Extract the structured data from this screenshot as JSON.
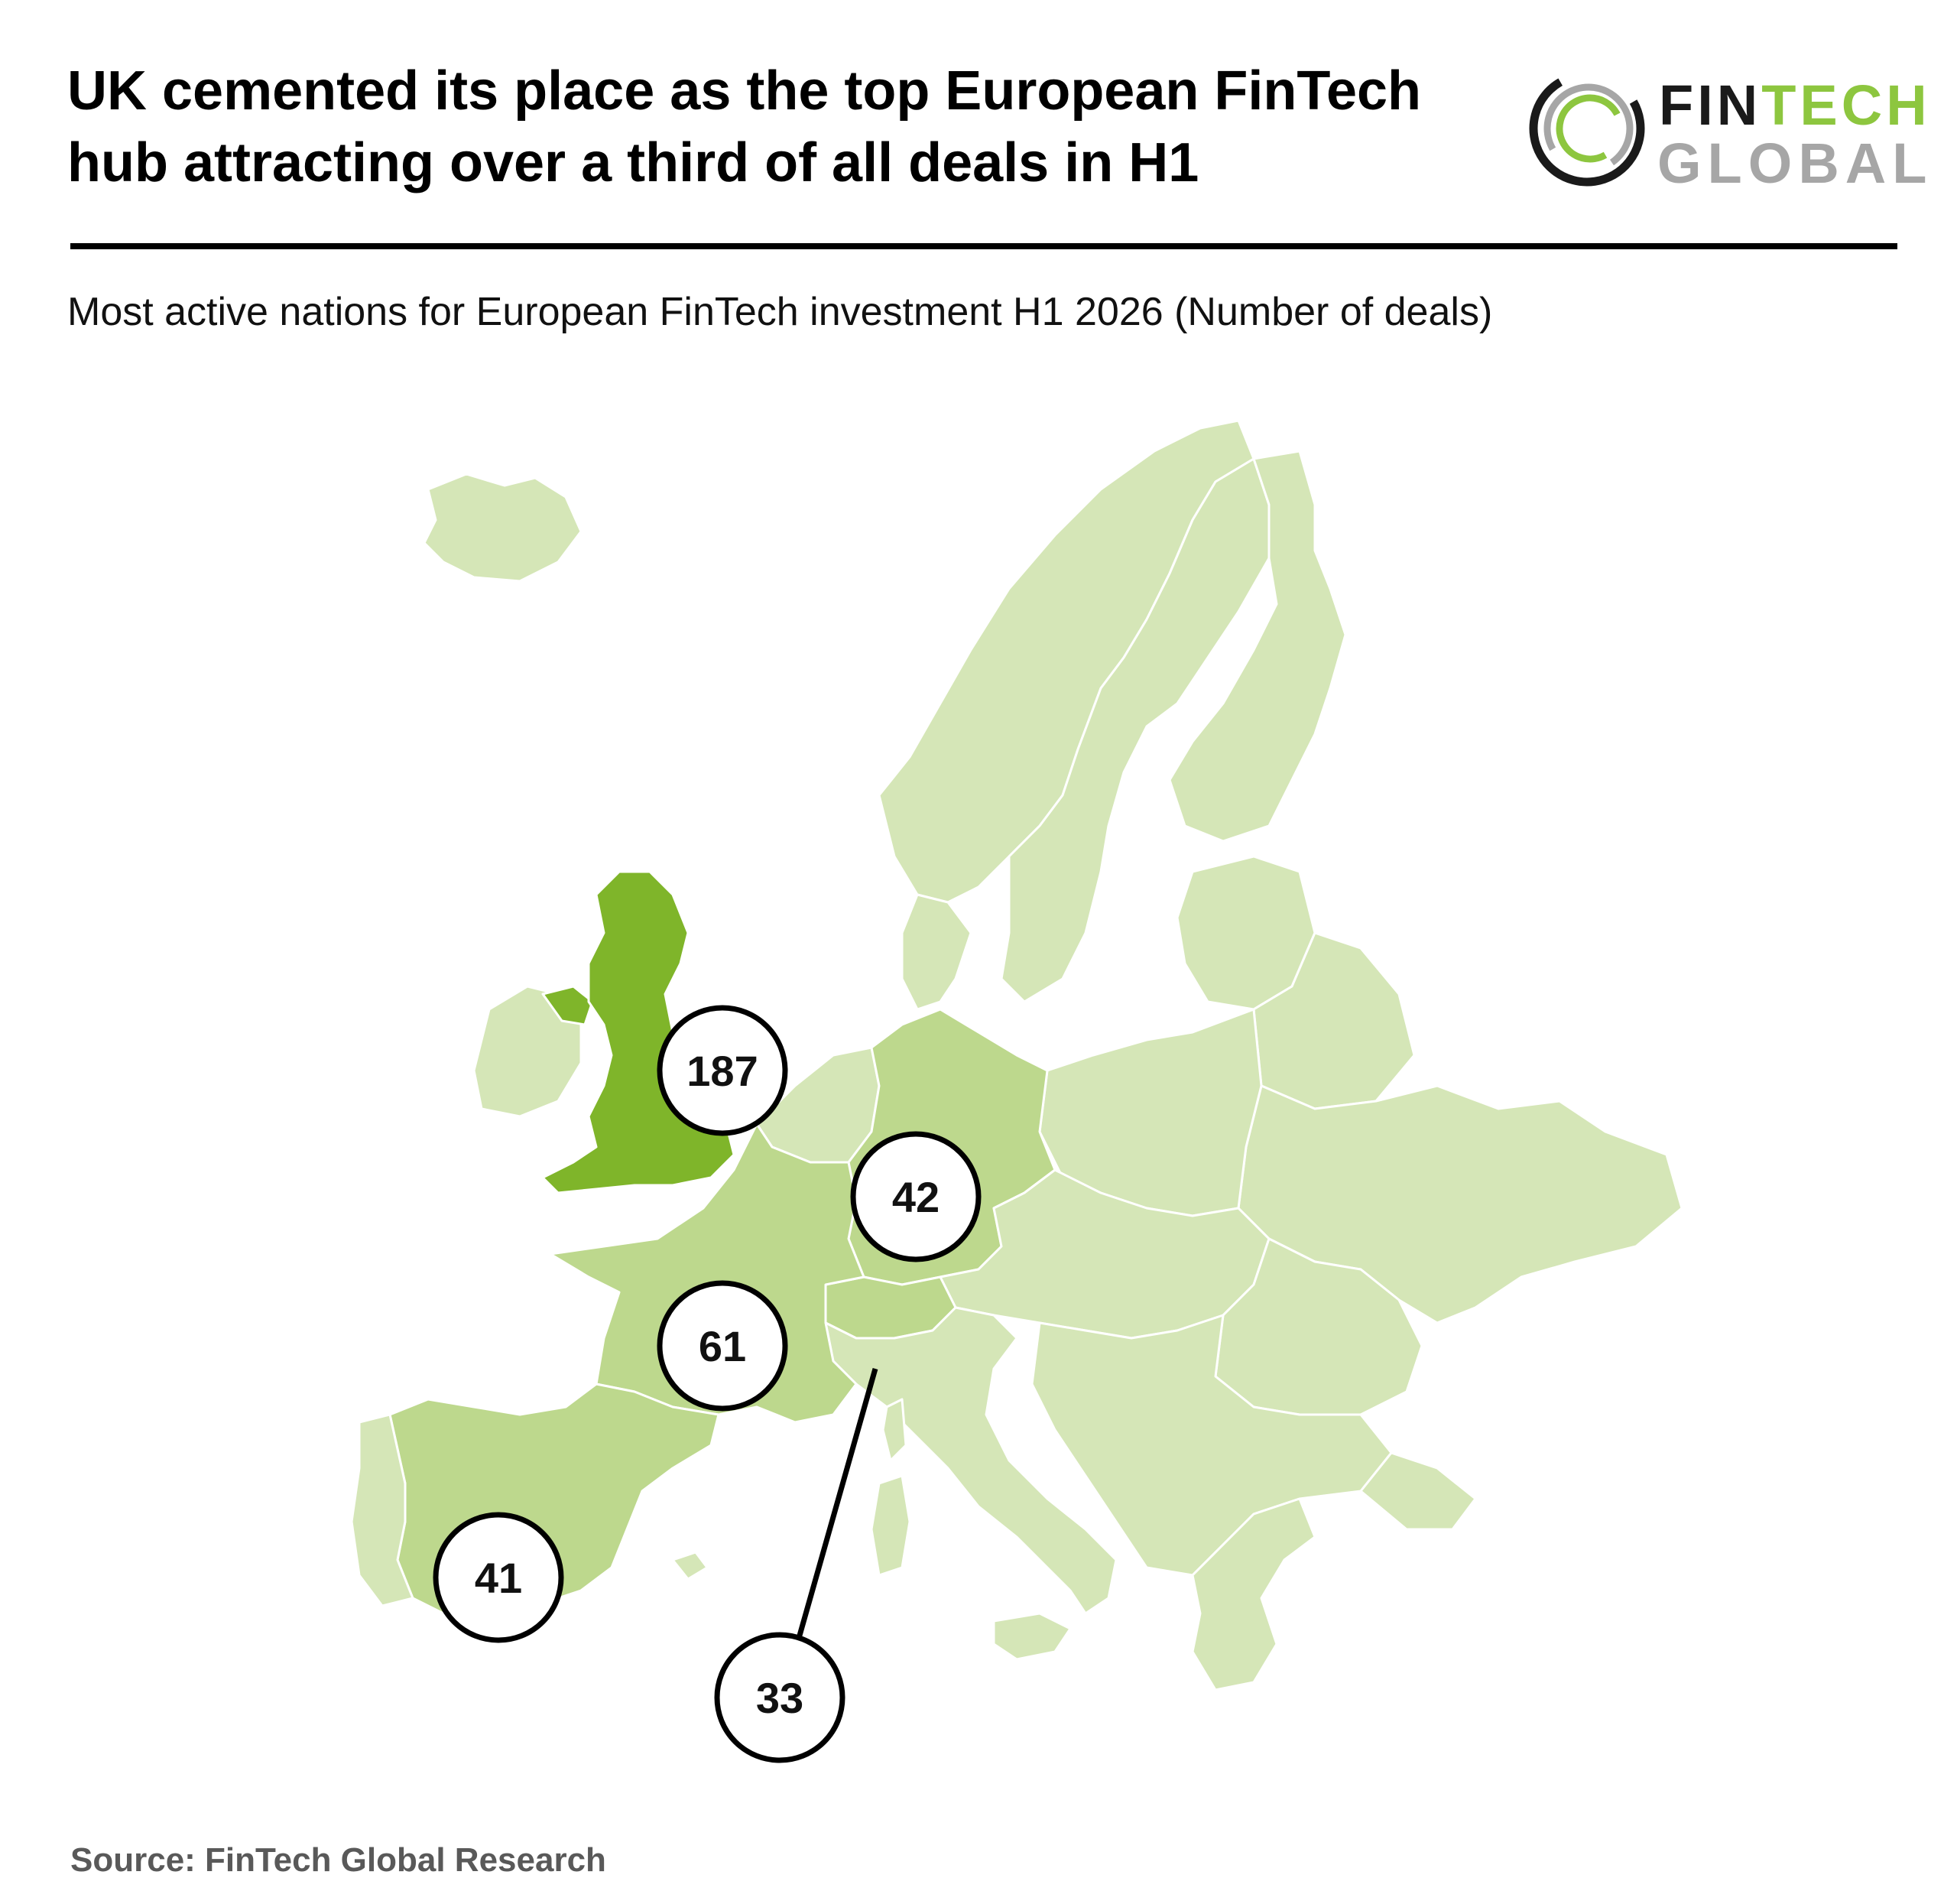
{
  "header": {
    "title_line1": "UK cemented its place as the top European FinTech",
    "title_line2": "hub attracting over a third of all deals in H1",
    "subtitle": "Most active nations for European FinTech investment H1 2026 (Number of deals)"
  },
  "logo": {
    "line1_dark": "FIN",
    "line1_green": "TECH",
    "line2": "GLOBAL",
    "icon": "fintech-global-ring-logo",
    "colors": {
      "green": "#8dc63f",
      "dark": "#1a1a1a",
      "grey": "#a6a6a6"
    }
  },
  "map": {
    "countries": [
      {
        "name": "United Kingdom",
        "deals": 187,
        "label": "187"
      },
      {
        "name": "France",
        "deals": 61,
        "label": "61"
      },
      {
        "name": "Germany",
        "deals": 42,
        "label": "42"
      },
      {
        "name": "Spain",
        "deals": 41,
        "label": "41"
      },
      {
        "name": "Switzerland",
        "deals": 33,
        "label": "33"
      }
    ],
    "colors": {
      "top": "#7fb52a",
      "high": "#bdd88d",
      "base": "#d5e6b7",
      "border": "#ffffff"
    }
  },
  "footer": {
    "source": "Source: FinTech Global Research"
  }
}
